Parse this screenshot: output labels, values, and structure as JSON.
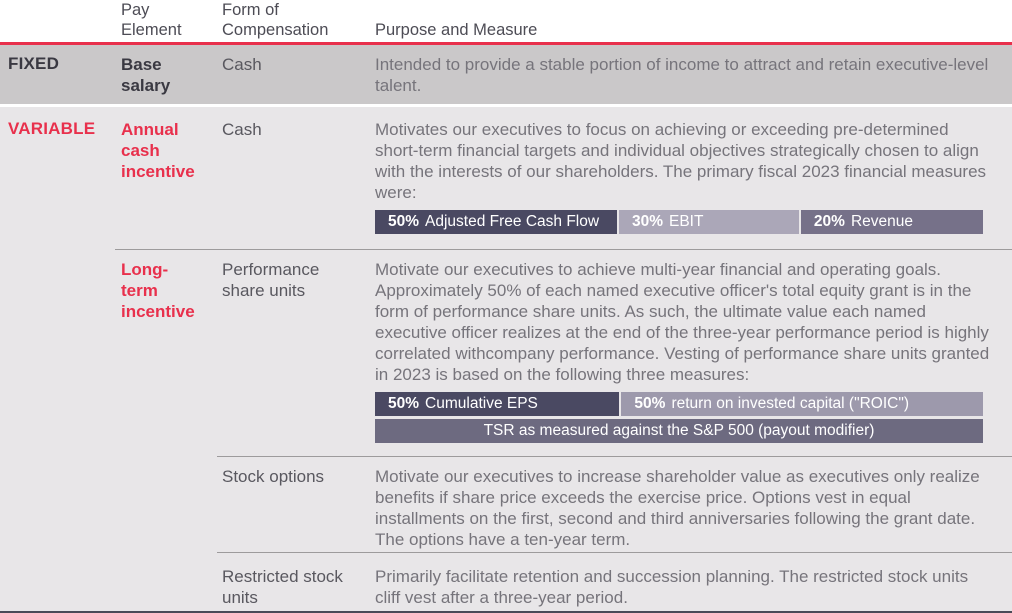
{
  "title": "Executive compensation pay elements table",
  "colors": {
    "accent_red": "#e8304c",
    "fixed_row_bg": "#cac8c9",
    "variable_section_bg": "#e8e6e8",
    "bar_dark": "#4a4962",
    "bar_light": "#aba7b8",
    "bar_medium": "#767189",
    "bar_roic_light": "#9d99ac",
    "bar_tsr_medium": "#6d6a80",
    "divider_gray": "#9d9b9c",
    "bottom_rule": "#4b4a57"
  },
  "header": {
    "pay_element": "Pay Element",
    "form_of_compensation": "Form of Compensation",
    "purpose_and_measure": "Purpose and Measure"
  },
  "fixed": {
    "category": "FIXED",
    "pay_element": "Base salary",
    "form": "Cash",
    "purpose": "Intended to provide a stable portion of income to attract and retain executive-level talent."
  },
  "variable": {
    "category": "VARIABLE",
    "annual_cash": {
      "pay_element": "Annual cash incentive",
      "form": "Cash",
      "purpose": "Motivates our executives to focus on achieving or exceeding pre-determined short-term financial targets and individual objectives strategically chosen to align with the interests of our shareholders. The primary fiscal 2023 financial measures were:",
      "measures": [
        {
          "pct": "50%",
          "label": "Adjusted Free Cash Flow"
        },
        {
          "pct": "30%",
          "label": "EBIT"
        },
        {
          "pct": "20%",
          "label": "Revenue"
        }
      ]
    },
    "long_term": {
      "pay_element": "Long-term incentive",
      "psu": {
        "form": "Performance share units",
        "purpose": "Motivate our executives to achieve multi-year financial and operating goals. Approximately 50% of each named executive officer's total equity grant is in the form of performance share units. As such, the ultimate value each named executive officer realizes at the end of the three-year performance period is highly correlated withcompany performance. Vesting of performance share units granted in 2023 is based on the following three measures:",
        "measures": [
          {
            "pct": "50%",
            "label": "Cumulative EPS"
          },
          {
            "pct": "50%",
            "label": "return on invested capital (\"ROIC\")"
          }
        ],
        "modifier_measure": "TSR as measured against the S&P 500 (payout modifier)"
      },
      "stock_options": {
        "form": "Stock options",
        "purpose": "Motivate our executives to increase shareholder value as executives only realize benefits if share price exceeds the exercise price. Options vest in equal installments on the first, second and third anniversaries following the grant date. The options have a ten-year term."
      },
      "rsu": {
        "form": "Restricted stock units",
        "purpose": "Primarily facilitate retention and succession planning. The restricted stock units cliff vest after a three-year period."
      }
    }
  }
}
